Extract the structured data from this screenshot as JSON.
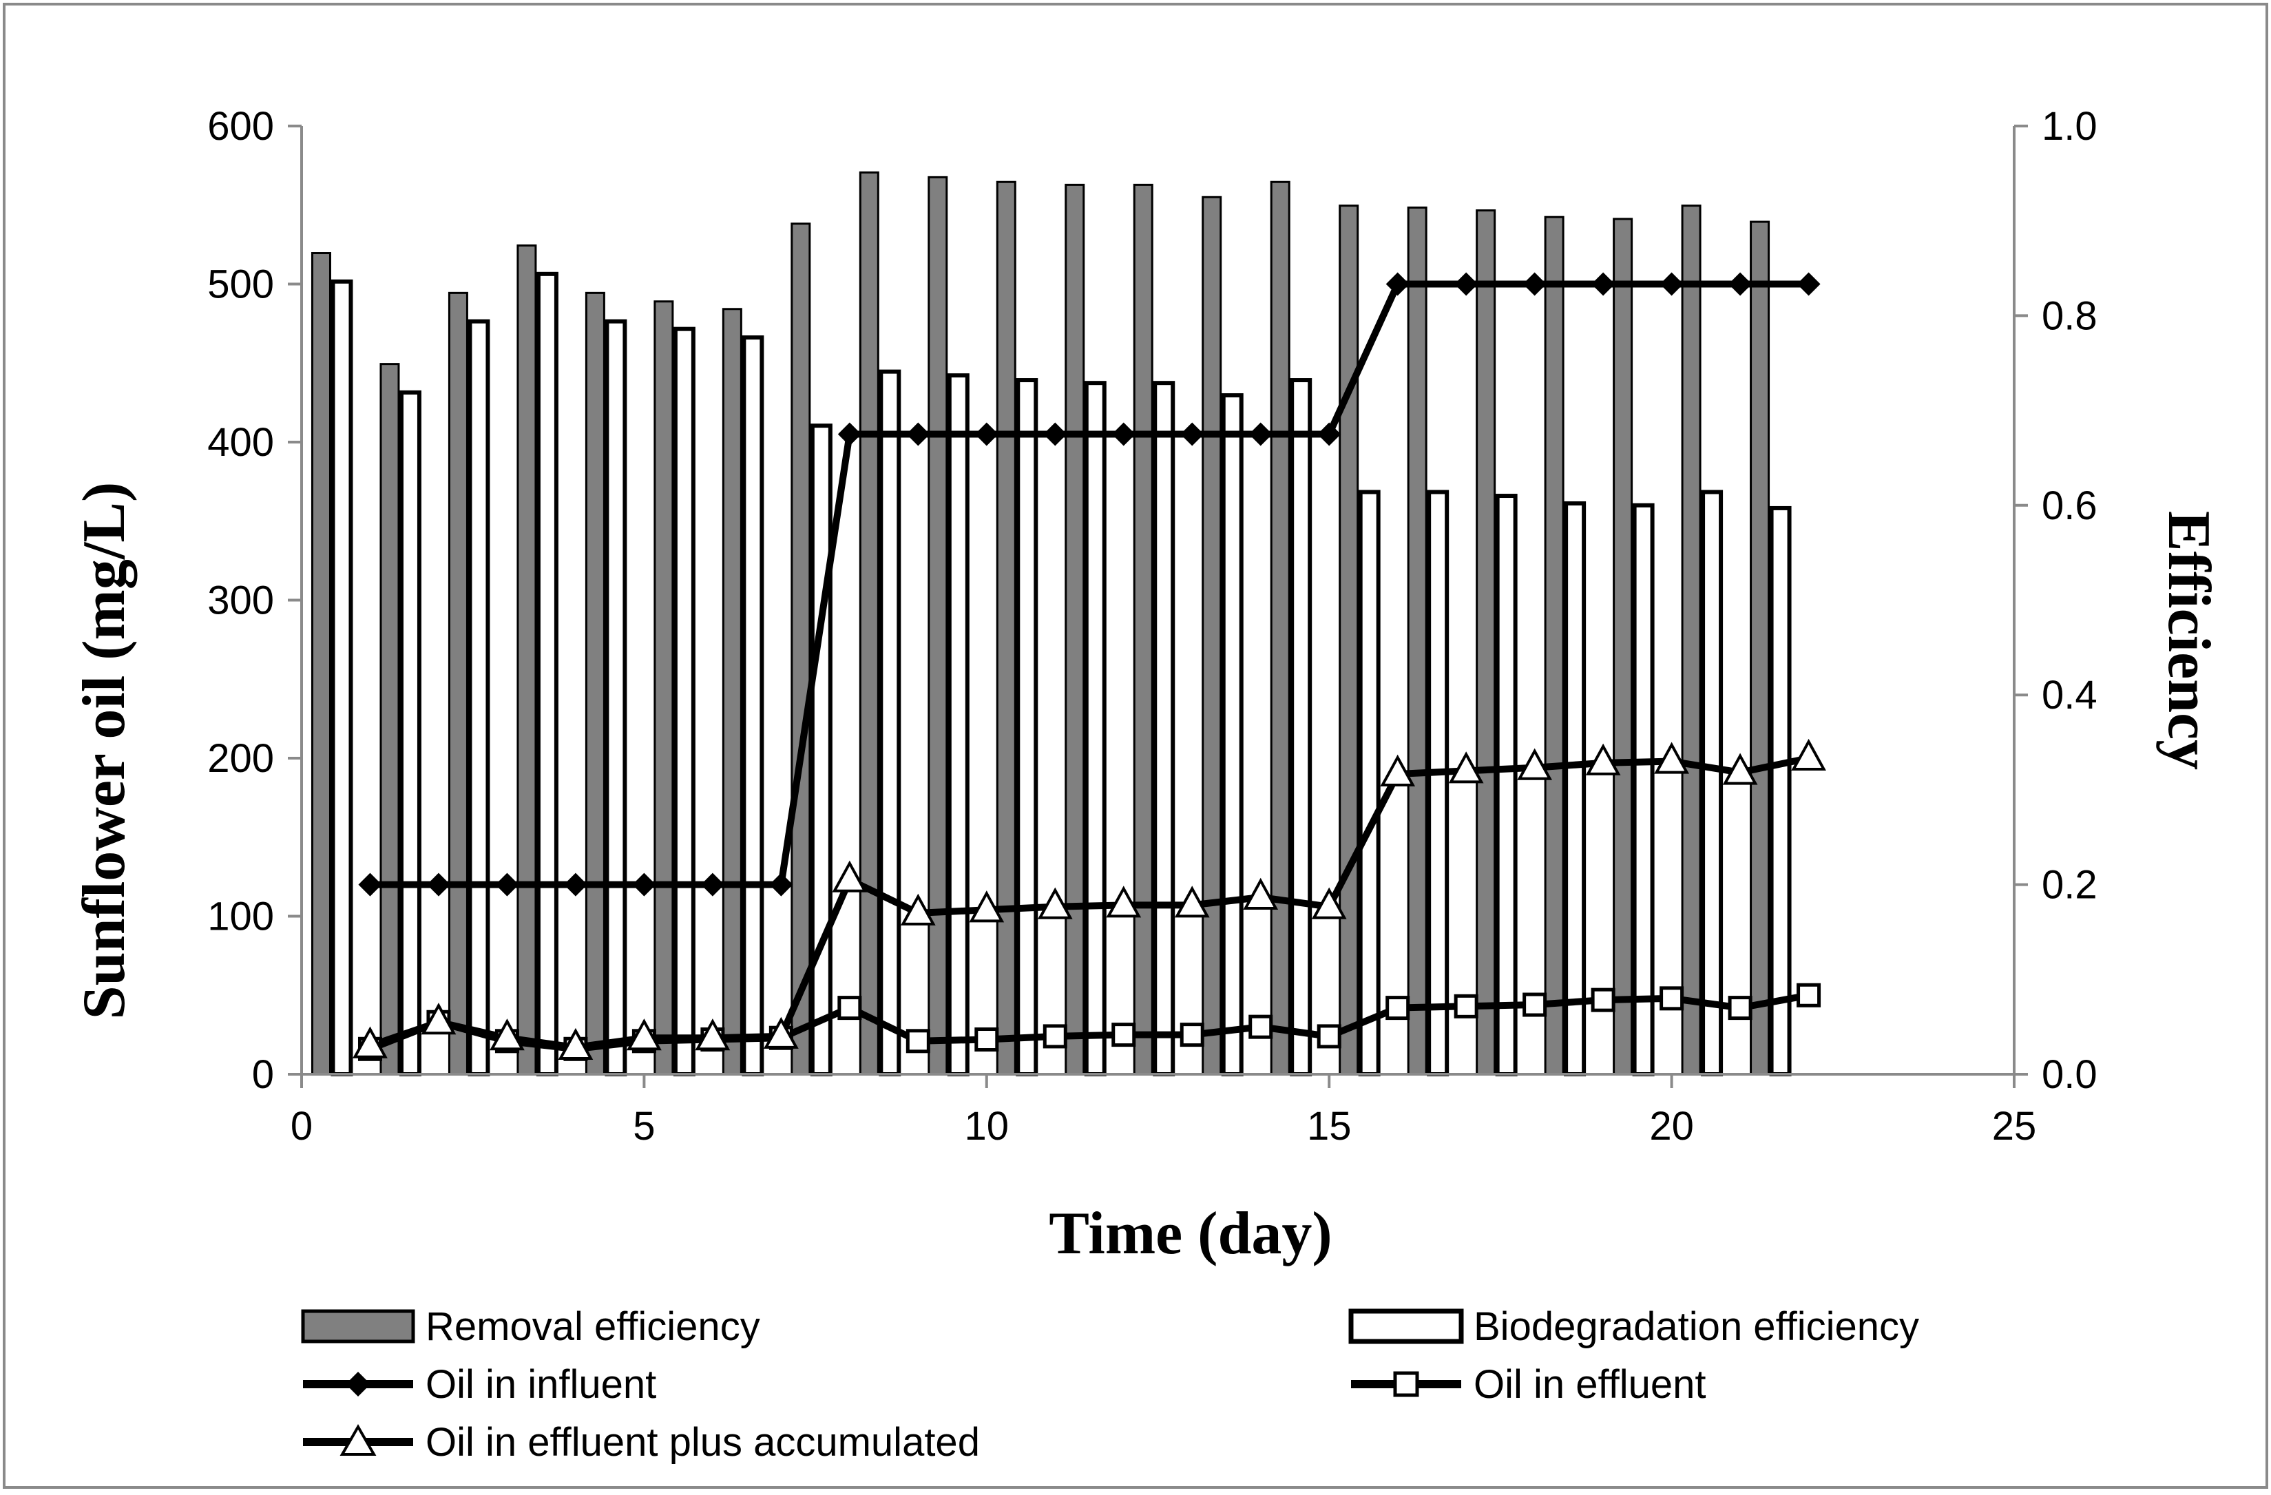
{
  "chart_data": {
    "type": "bar",
    "title": "",
    "xlabel": "Time (day)",
    "ylabel": "Sunflower oil (mg/L)",
    "y2label": "Efficiency",
    "xlim": [
      0,
      25
    ],
    "ylim": [
      0,
      600
    ],
    "y2lim": [
      0.0,
      1.0
    ],
    "x_ticks": [
      "0",
      "5",
      "10",
      "15",
      "20",
      "25"
    ],
    "y_ticks": [
      "0",
      "100",
      "200",
      "300",
      "400",
      "500",
      "600"
    ],
    "y2_ticks": [
      "0.0",
      "0.2",
      "0.4",
      "0.6",
      "0.8",
      "1.0"
    ],
    "grid": false,
    "legend_position": "bottom",
    "x": [
      1,
      2,
      3,
      4,
      5,
      6,
      7,
      8,
      9,
      10,
      11,
      12,
      13,
      14,
      15,
      16,
      17,
      18,
      19,
      20,
      21,
      22
    ],
    "bar_series": [
      {
        "name": "Removal efficiency",
        "axis": "right",
        "color": "#808080",
        "values": [
          0.866,
          0.749,
          0.824,
          0.874,
          0.824,
          0.815,
          0.807,
          0.897,
          0.951,
          0.946,
          0.941,
          0.938,
          0.938,
          0.925,
          0.941,
          0.916,
          0.914,
          0.911,
          0.904,
          0.902,
          0.916,
          0.899
        ]
      },
      {
        "name": "Biodegradation efficiency",
        "axis": "right",
        "color": "#ffffff",
        "values": [
          0.836,
          0.719,
          0.794,
          0.844,
          0.794,
          0.786,
          0.777,
          0.684,
          0.741,
          0.737,
          0.732,
          0.729,
          0.729,
          0.716,
          0.732,
          0.614,
          0.614,
          0.61,
          0.602,
          0.6,
          0.614,
          0.597
        ]
      }
    ],
    "line_series": [
      {
        "name": "Oil in influent",
        "axis": "left",
        "marker": "diamond",
        "values": [
          120,
          120,
          120,
          120,
          120,
          120,
          120,
          405,
          405,
          405,
          405,
          405,
          405,
          405,
          405,
          500,
          500,
          500,
          500,
          500,
          500,
          500
        ]
      },
      {
        "name": "Oil in effluent",
        "axis": "left",
        "marker": "square",
        "values": [
          16,
          33,
          21,
          16,
          21,
          22,
          23,
          42,
          21,
          22,
          24,
          25,
          25,
          30,
          24,
          42,
          43,
          44,
          47,
          48,
          42,
          50
        ]
      },
      {
        "name": "Oil in effluent plus accumulated",
        "axis": "left",
        "marker": "triangle",
        "values": [
          18,
          33,
          23,
          17,
          23,
          23,
          24,
          123,
          102,
          104,
          106,
          107,
          107,
          112,
          106,
          190,
          192,
          194,
          197,
          198,
          191,
          200
        ]
      }
    ]
  }
}
